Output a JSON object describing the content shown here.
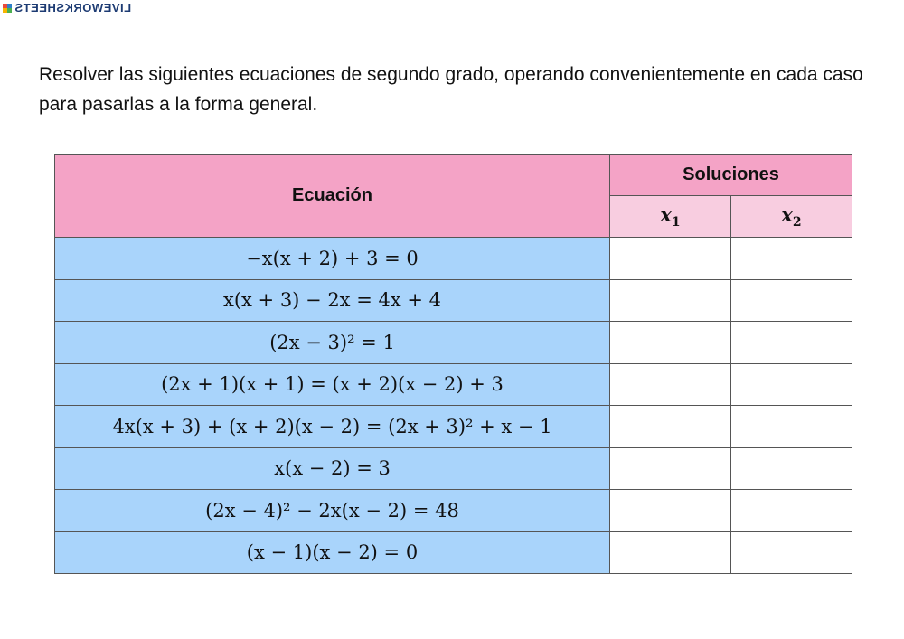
{
  "logo": {
    "text": "LIVEWORKSHEETS",
    "colors": [
      "#e94b3c",
      "#2f80c8",
      "#f5b400",
      "#4caf50"
    ]
  },
  "instructions": "Resolver las siguientes ecuaciones de segundo grado, operando convenientemente en cada caso para pasarlas a la forma general.",
  "table": {
    "header_equation": "Ecuación",
    "header_solutions": "Soluciones",
    "col_x1": "x",
    "col_x1_sub": "1",
    "col_x2": "x",
    "col_x2_sub": "2",
    "colors": {
      "header": "#f4a3c6",
      "subheader": "#f8cde0",
      "equation_cell": "#a9d4fb"
    },
    "rows": [
      {
        "equation": "−x(x + 2) + 3 = 0",
        "x1": "",
        "x2": ""
      },
      {
        "equation": "x(x + 3) − 2x = 4x + 4",
        "x1": "",
        "x2": ""
      },
      {
        "equation": "(2x − 3)² = 1",
        "x1": "",
        "x2": ""
      },
      {
        "equation": "(2x + 1)(x + 1) = (x + 2)(x − 2) + 3",
        "x1": "",
        "x2": ""
      },
      {
        "equation": "4x(x + 3) + (x + 2)(x − 2) = (2x + 3)² + x − 1",
        "x1": "",
        "x2": ""
      },
      {
        "equation": "x(x − 2) = 3",
        "x1": "",
        "x2": ""
      },
      {
        "equation": "(2x − 4)² − 2x(x − 2) = 48",
        "x1": "",
        "x2": ""
      },
      {
        "equation": "(x − 1)(x − 2) = 0",
        "x1": "",
        "x2": ""
      }
    ]
  }
}
